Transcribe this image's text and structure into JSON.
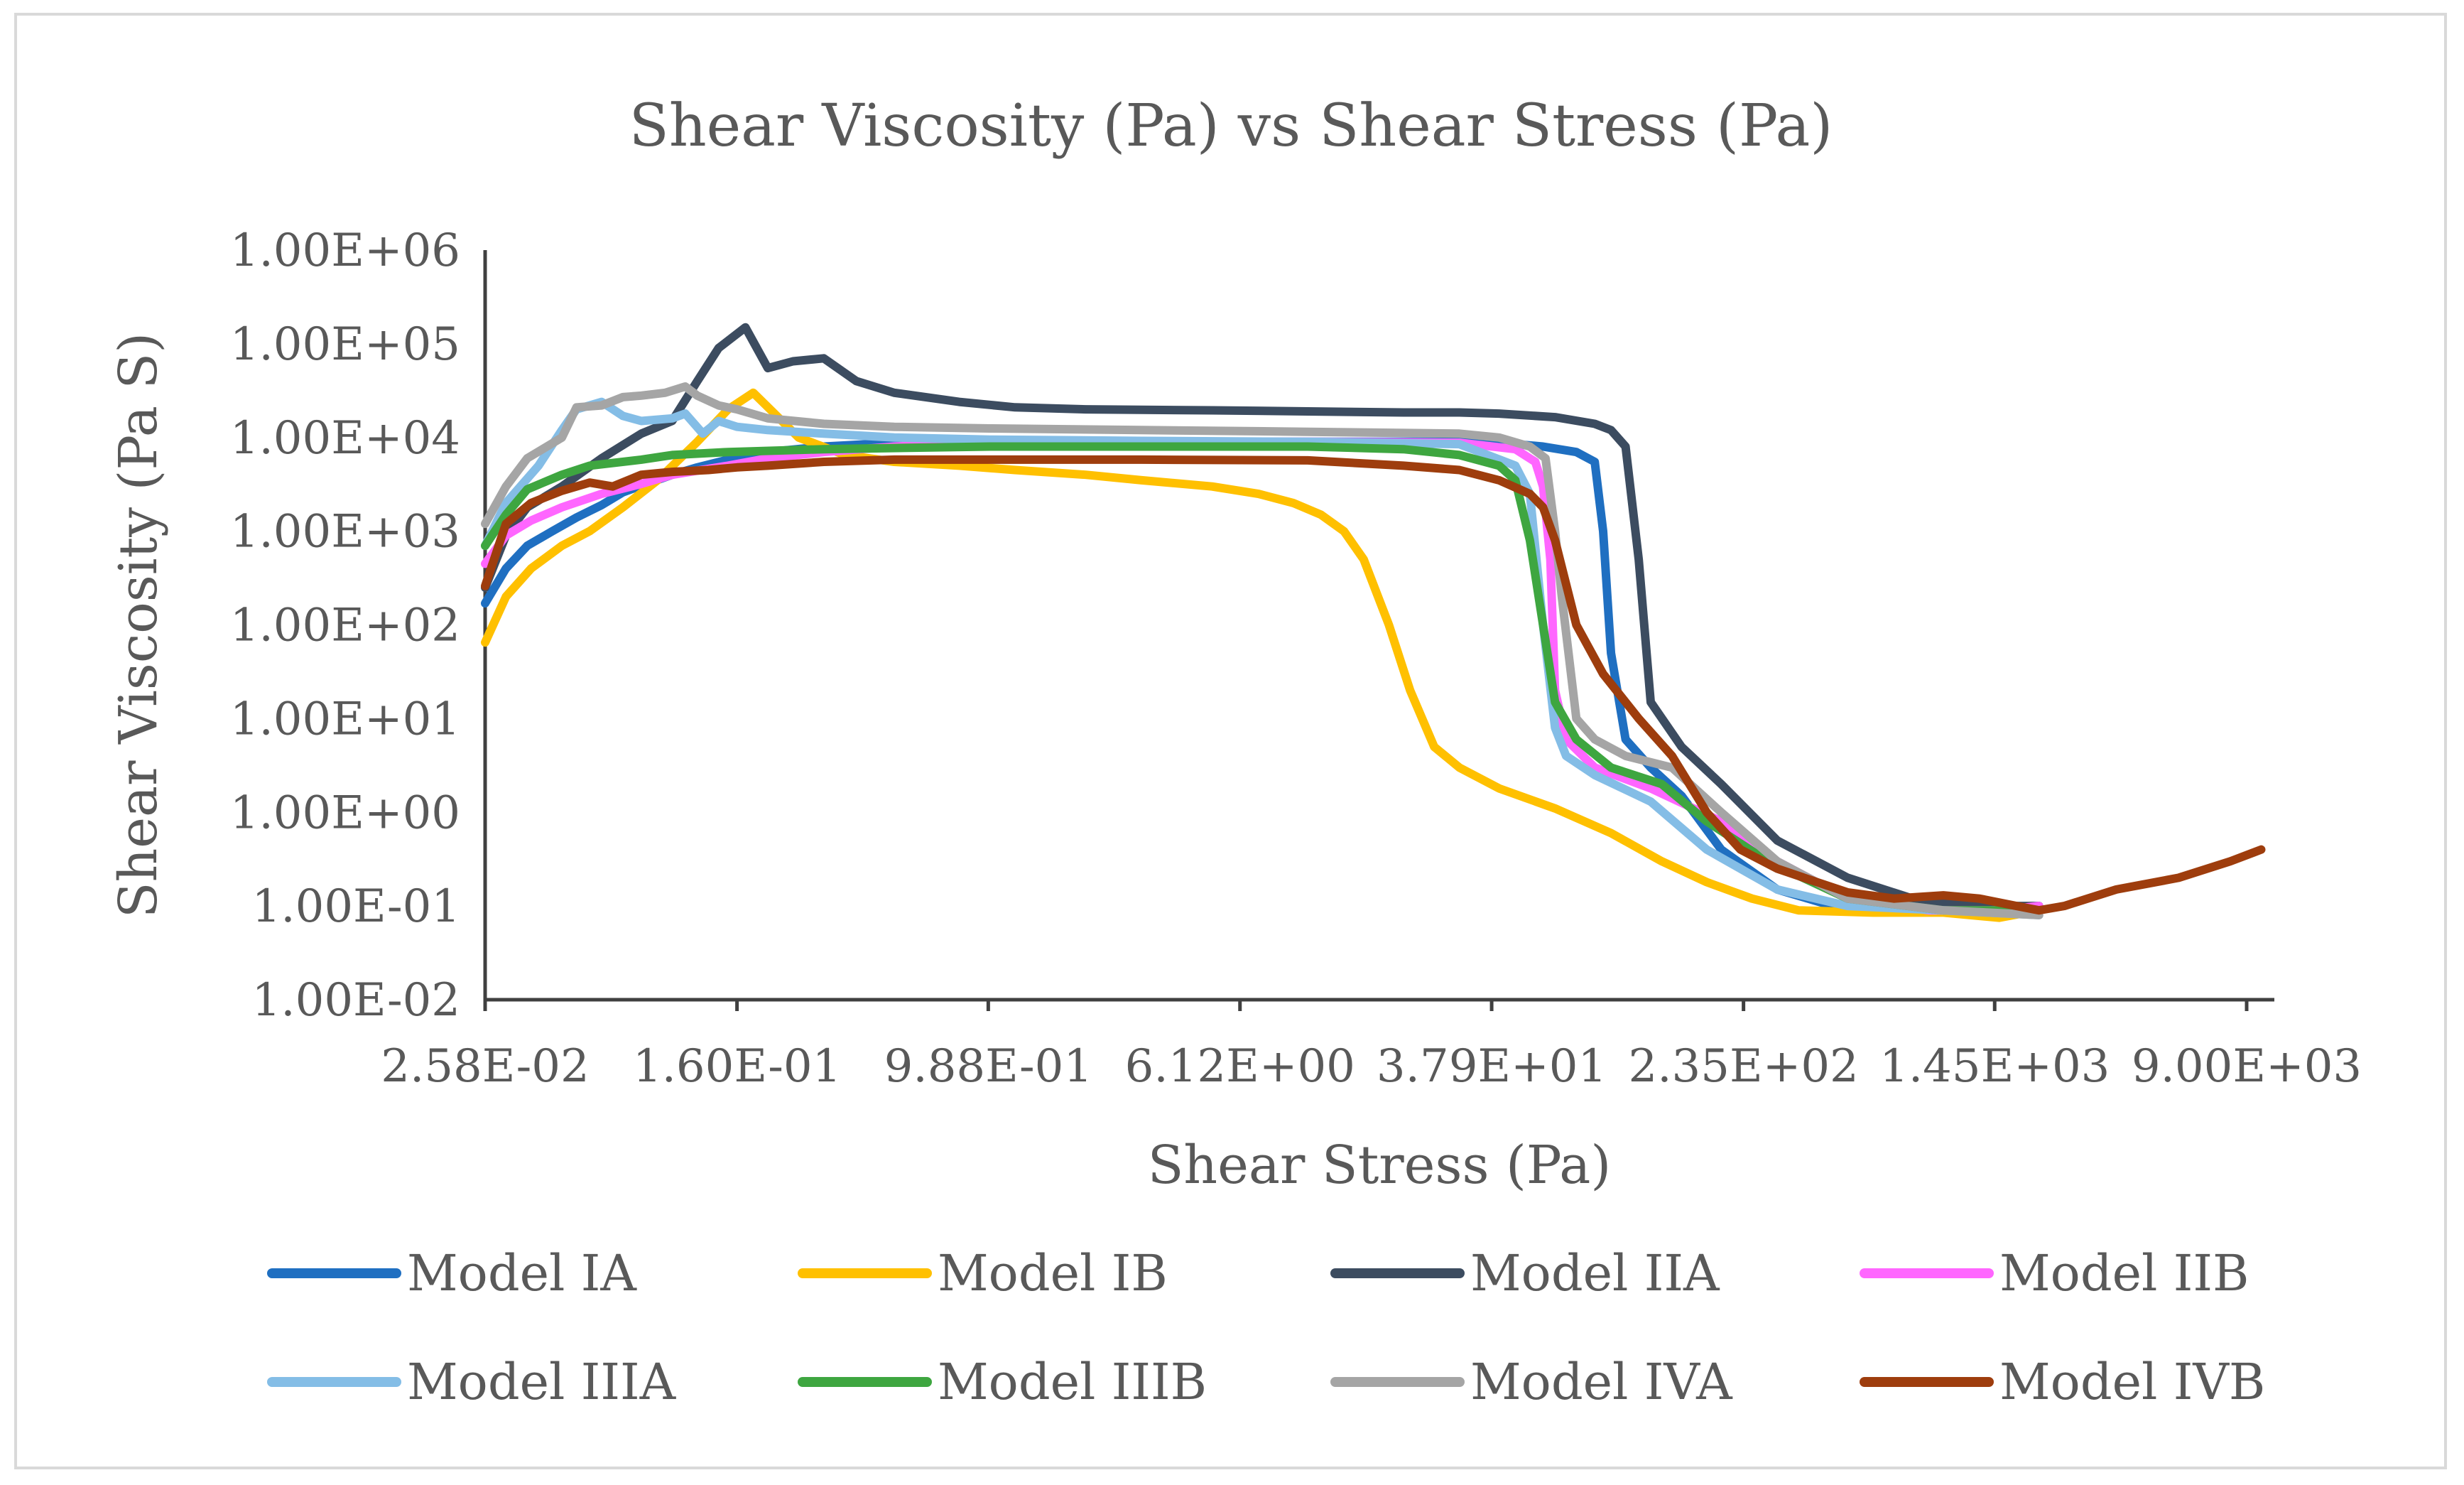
{
  "chart_data": {
    "type": "line",
    "title": "Shear Viscosity (Pa) vs Shear Stress (Pa)",
    "xlabel": "Shear Stress (Pa)",
    "ylabel": "Shear Viscosity (Pa S)",
    "x_scale": "log",
    "y_scale": "log",
    "xlim": [
      0.0258,
      11000
    ],
    "ylim": [
      0.01,
      1000000
    ],
    "x_ticks": [
      {
        "value": 0.0258,
        "label": "2.58E-02"
      },
      {
        "value": 0.16,
        "label": "1.60E-01"
      },
      {
        "value": 0.988,
        "label": "9.88E-01"
      },
      {
        "value": 6.12,
        "label": "6.12E+00"
      },
      {
        "value": 37.9,
        "label": "3.79E+01"
      },
      {
        "value": 235,
        "label": "2.35E+02"
      },
      {
        "value": 1450,
        "label": "1.45E+03"
      },
      {
        "value": 9000,
        "label": "9.00E+03"
      }
    ],
    "y_ticks": [
      {
        "value": 1000000,
        "label": "1.00E+06"
      },
      {
        "value": 100000,
        "label": "1.00E+05"
      },
      {
        "value": 10000,
        "label": "1.00E+04"
      },
      {
        "value": 1000,
        "label": "1.00E+03"
      },
      {
        "value": 100,
        "label": "1.00E+02"
      },
      {
        "value": 10,
        "label": "1.00E+01"
      },
      {
        "value": 1,
        "label": "1.00E+00"
      },
      {
        "value": 0.1,
        "label": "1.00E-01"
      },
      {
        "value": 0.01,
        "label": "1.00E-02"
      }
    ],
    "grid": false,
    "legend_position": "bottom",
    "series": [
      {
        "name": "Model IA",
        "color": "#1f6fc1",
        "points": [
          [
            0.0258,
            170
          ],
          [
            0.03,
            400
          ],
          [
            0.035,
            700
          ],
          [
            0.042,
            1000
          ],
          [
            0.05,
            1400
          ],
          [
            0.06,
            1900
          ],
          [
            0.07,
            2600
          ],
          [
            0.085,
            3300
          ],
          [
            0.1,
            4000
          ],
          [
            0.12,
            4800
          ],
          [
            0.15,
            5800
          ],
          [
            0.2,
            7000
          ],
          [
            0.3,
            8000
          ],
          [
            0.5,
            8800
          ],
          [
            1,
            9000
          ],
          [
            3,
            9000
          ],
          [
            10,
            9000
          ],
          [
            30,
            9000
          ],
          [
            40,
            8800
          ],
          [
            55,
            8000
          ],
          [
            70,
            7000
          ],
          [
            80,
            5500
          ],
          [
            85,
            1000
          ],
          [
            90,
            50
          ],
          [
            100,
            6
          ],
          [
            120,
            3
          ],
          [
            150,
            1.5
          ],
          [
            200,
            0.4
          ],
          [
            300,
            0.15
          ],
          [
            500,
            0.09
          ],
          [
            1000,
            0.09
          ],
          [
            1500,
            0.08
          ],
          [
            2000,
            0.1
          ]
        ]
      },
      {
        "name": "Model IB",
        "color": "#ffc000",
        "points": [
          [
            0.0258,
            65
          ],
          [
            0.03,
            200
          ],
          [
            0.036,
            400
          ],
          [
            0.045,
            700
          ],
          [
            0.055,
            1000
          ],
          [
            0.07,
            1800
          ],
          [
            0.09,
            3500
          ],
          [
            0.12,
            9000
          ],
          [
            0.15,
            20000
          ],
          [
            0.18,
            30000
          ],
          [
            0.21,
            18000
          ],
          [
            0.25,
            10000
          ],
          [
            0.35,
            6500
          ],
          [
            0.5,
            5500
          ],
          [
            0.8,
            5000
          ],
          [
            1.2,
            4500
          ],
          [
            2,
            4000
          ],
          [
            3,
            3500
          ],
          [
            5,
            3000
          ],
          [
            7,
            2500
          ],
          [
            9,
            2000
          ],
          [
            11,
            1500
          ],
          [
            13,
            1000
          ],
          [
            15,
            500
          ],
          [
            18,
            100
          ],
          [
            21,
            20
          ],
          [
            25,
            5
          ],
          [
            30,
            3
          ],
          [
            40,
            1.8
          ],
          [
            60,
            1.1
          ],
          [
            90,
            0.6
          ],
          [
            130,
            0.3
          ],
          [
            180,
            0.18
          ],
          [
            250,
            0.12
          ],
          [
            350,
            0.09
          ],
          [
            600,
            0.085
          ],
          [
            1000,
            0.085
          ],
          [
            1500,
            0.075
          ],
          [
            2000,
            0.09
          ]
        ]
      },
      {
        "name": "Model IIA",
        "color": "#3c4c60",
        "points": [
          [
            0.0258,
            250
          ],
          [
            0.03,
            900
          ],
          [
            0.035,
            1800
          ],
          [
            0.045,
            3000
          ],
          [
            0.06,
            6000
          ],
          [
            0.08,
            11000
          ],
          [
            0.1,
            15000
          ],
          [
            0.12,
            40000
          ],
          [
            0.14,
            90000
          ],
          [
            0.17,
            150000
          ],
          [
            0.2,
            55000
          ],
          [
            0.24,
            65000
          ],
          [
            0.3,
            70000
          ],
          [
            0.38,
            40000
          ],
          [
            0.5,
            30000
          ],
          [
            0.8,
            24000
          ],
          [
            1.2,
            21000
          ],
          [
            2,
            20000
          ],
          [
            5,
            19500
          ],
          [
            10,
            19000
          ],
          [
            20,
            18500
          ],
          [
            30,
            18500
          ],
          [
            40,
            18000
          ],
          [
            60,
            16500
          ],
          [
            80,
            14000
          ],
          [
            90,
            12000
          ],
          [
            100,
            8000
          ],
          [
            110,
            500
          ],
          [
            120,
            15
          ],
          [
            150,
            5
          ],
          [
            200,
            2
          ],
          [
            300,
            0.5
          ],
          [
            500,
            0.2
          ],
          [
            800,
            0.12
          ],
          [
            1200,
            0.1
          ],
          [
            2000,
            0.1
          ]
        ]
      },
      {
        "name": "Model IIB",
        "color": "#ff66ff",
        "points": [
          [
            0.0258,
            450
          ],
          [
            0.03,
            900
          ],
          [
            0.036,
            1300
          ],
          [
            0.045,
            1800
          ],
          [
            0.06,
            2500
          ],
          [
            0.08,
            3200
          ],
          [
            0.1,
            4000
          ],
          [
            0.15,
            5000
          ],
          [
            0.2,
            6000
          ],
          [
            0.3,
            7000
          ],
          [
            0.5,
            8000
          ],
          [
            1,
            8800
          ],
          [
            3,
            9000
          ],
          [
            10,
            9000
          ],
          [
            30,
            8800
          ],
          [
            45,
            7500
          ],
          [
            52,
            5500
          ],
          [
            55,
            3000
          ],
          [
            58,
            500
          ],
          [
            60,
            20
          ],
          [
            65,
            6
          ],
          [
            80,
            3
          ],
          [
            120,
            1.8
          ],
          [
            200,
            0.8
          ],
          [
            300,
            0.3
          ],
          [
            500,
            0.12
          ],
          [
            900,
            0.09
          ],
          [
            1500,
            0.09
          ],
          [
            2000,
            0.1
          ]
        ]
      },
      {
        "name": "Model IIIA",
        "color": "#84bde6",
        "points": [
          [
            0.0258,
            700
          ],
          [
            0.03,
            2000
          ],
          [
            0.038,
            5000
          ],
          [
            0.045,
            12000
          ],
          [
            0.05,
            20000
          ],
          [
            0.06,
            24000
          ],
          [
            0.07,
            17000
          ],
          [
            0.08,
            15000
          ],
          [
            0.1,
            16000
          ],
          [
            0.11,
            18000
          ],
          [
            0.125,
            11000
          ],
          [
            0.14,
            15000
          ],
          [
            0.16,
            13000
          ],
          [
            0.2,
            12000
          ],
          [
            0.3,
            11000
          ],
          [
            0.5,
            10000
          ],
          [
            1,
            9500
          ],
          [
            3,
            9200
          ],
          [
            10,
            9000
          ],
          [
            30,
            8500
          ],
          [
            45,
            5000
          ],
          [
            50,
            2500
          ],
          [
            55,
            100
          ],
          [
            60,
            8
          ],
          [
            65,
            4
          ],
          [
            80,
            2.5
          ],
          [
            120,
            1.3
          ],
          [
            180,
            0.4
          ],
          [
            300,
            0.15
          ],
          [
            500,
            0.1
          ],
          [
            1000,
            0.09
          ],
          [
            2000,
            0.08
          ]
        ]
      },
      {
        "name": "Model IIIB",
        "color": "#3ea640",
        "points": [
          [
            0.0258,
            700
          ],
          [
            0.03,
            1500
          ],
          [
            0.035,
            2800
          ],
          [
            0.045,
            4000
          ],
          [
            0.055,
            5000
          ],
          [
            0.08,
            5800
          ],
          [
            0.1,
            6500
          ],
          [
            0.15,
            7000
          ],
          [
            0.3,
            7500
          ],
          [
            0.6,
            7800
          ],
          [
            1,
            8000
          ],
          [
            3,
            8000
          ],
          [
            10,
            8000
          ],
          [
            20,
            7500
          ],
          [
            30,
            6500
          ],
          [
            40,
            5000
          ],
          [
            45,
            3500
          ],
          [
            50,
            800
          ],
          [
            55,
            100
          ],
          [
            60,
            15
          ],
          [
            70,
            6
          ],
          [
            90,
            3
          ],
          [
            130,
            2
          ],
          [
            180,
            0.8
          ],
          [
            280,
            0.3
          ],
          [
            500,
            0.12
          ],
          [
            1000,
            0.09
          ],
          [
            2000,
            0.09
          ]
        ]
      },
      {
        "name": "Model IVA",
        "color": "#a5a5a5",
        "points": [
          [
            0.0258,
            1200
          ],
          [
            0.03,
            3000
          ],
          [
            0.035,
            6000
          ],
          [
            0.045,
            10000
          ],
          [
            0.05,
            21000
          ],
          [
            0.06,
            22000
          ],
          [
            0.07,
            27000
          ],
          [
            0.08,
            28000
          ],
          [
            0.095,
            30000
          ],
          [
            0.11,
            35000
          ],
          [
            0.12,
            28000
          ],
          [
            0.14,
            22000
          ],
          [
            0.16,
            20000
          ],
          [
            0.2,
            16000
          ],
          [
            0.3,
            14000
          ],
          [
            0.5,
            13000
          ],
          [
            1,
            12500
          ],
          [
            3,
            12000
          ],
          [
            10,
            11500
          ],
          [
            30,
            11000
          ],
          [
            40,
            10000
          ],
          [
            50,
            8000
          ],
          [
            56,
            6000
          ],
          [
            60,
            1000
          ],
          [
            63,
            200
          ],
          [
            70,
            10
          ],
          [
            80,
            6
          ],
          [
            100,
            4
          ],
          [
            140,
            3
          ],
          [
            200,
            1
          ],
          [
            300,
            0.3
          ],
          [
            500,
            0.12
          ],
          [
            1000,
            0.09
          ],
          [
            2000,
            0.08
          ]
        ]
      },
      {
        "name": "Model IVB",
        "color": "#9e3d0d",
        "points": [
          [
            0.0258,
            260
          ],
          [
            0.03,
            1200
          ],
          [
            0.036,
            2000
          ],
          [
            0.045,
            2700
          ],
          [
            0.055,
            3300
          ],
          [
            0.065,
            3000
          ],
          [
            0.08,
            4000
          ],
          [
            0.1,
            4300
          ],
          [
            0.13,
            4500
          ],
          [
            0.16,
            4800
          ],
          [
            0.2,
            5000
          ],
          [
            0.3,
            5500
          ],
          [
            0.5,
            5800
          ],
          [
            1,
            5800
          ],
          [
            3,
            5800
          ],
          [
            10,
            5700
          ],
          [
            20,
            5000
          ],
          [
            30,
            4500
          ],
          [
            40,
            3500
          ],
          [
            50,
            2500
          ],
          [
            55,
            1800
          ],
          [
            60,
            800
          ],
          [
            70,
            100
          ],
          [
            85,
            30
          ],
          [
            110,
            10
          ],
          [
            140,
            4
          ],
          [
            180,
            1
          ],
          [
            230,
            0.4
          ],
          [
            300,
            0.25
          ],
          [
            400,
            0.18
          ],
          [
            500,
            0.14
          ],
          [
            700,
            0.12
          ],
          [
            1000,
            0.13
          ],
          [
            1300,
            0.12
          ],
          [
            1700,
            0.1
          ],
          [
            2000,
            0.09
          ],
          [
            2400,
            0.1
          ],
          [
            3500,
            0.15
          ],
          [
            5500,
            0.2
          ],
          [
            8000,
            0.3
          ],
          [
            10000,
            0.4
          ]
        ]
      }
    ]
  }
}
